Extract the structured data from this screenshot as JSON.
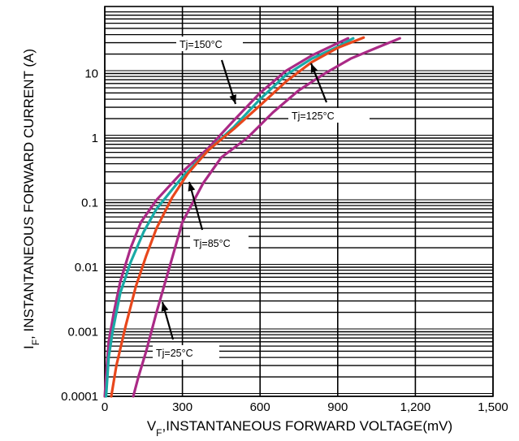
{
  "chart_data": {
    "type": "line",
    "xlabel": {
      "main": "V",
      "sub": "F",
      "rest": ",INSTANTANEOUS FORWARD VOLTAGE(mV)"
    },
    "ylabel": {
      "main": "I",
      "sub": "F",
      "rest": ", INSTANTANEOUS FORWARD CURRENT (A)"
    },
    "x_scale": "linear",
    "y_scale": "log",
    "xlim": [
      0,
      1500
    ],
    "ylim": [
      0.0001,
      50
    ],
    "x_ticks": [
      {
        "value": 0,
        "label": "0"
      },
      {
        "value": 300,
        "label": "300"
      },
      {
        "value": 600,
        "label": "600"
      },
      {
        "value": 900,
        "label": "900"
      },
      {
        "value": 1200,
        "label": "1,200"
      },
      {
        "value": 1500,
        "label": "1,500"
      }
    ],
    "y_ticks": [
      {
        "value": 0.0001,
        "label": "0.0001"
      },
      {
        "value": 0.001,
        "label": "0.001"
      },
      {
        "value": 0.01,
        "label": "0.01"
      },
      {
        "value": 0.1,
        "label": "0.1"
      },
      {
        "value": 1,
        "label": "1"
      },
      {
        "value": 10,
        "label": "10"
      }
    ],
    "grid": true,
    "series": [
      {
        "name": "Tj=150°C",
        "color": "#aa2a86",
        "x": [
          0,
          5,
          15,
          35,
          60,
          100,
          140,
          200,
          300,
          400,
          500,
          600,
          700,
          800,
          880,
          940
        ],
        "y": [
          0.0001,
          0.0002,
          0.0007,
          0.002,
          0.006,
          0.02,
          0.05,
          0.11,
          0.3,
          0.7,
          1.9,
          5,
          11,
          19,
          27,
          35
        ]
      },
      {
        "name": "Tj=125°C",
        "color": "#1aaaa6",
        "x": [
          5,
          15,
          30,
          60,
          100,
          150,
          200,
          300,
          400,
          500,
          600,
          700,
          800,
          900,
          960
        ],
        "y": [
          0.0001,
          0.0004,
          0.001,
          0.004,
          0.012,
          0.035,
          0.08,
          0.25,
          0.65,
          1.5,
          4,
          9.5,
          17,
          26,
          35
        ]
      },
      {
        "name": "Tj=85°C",
        "color": "#e8471c",
        "x": [
          25,
          45,
          80,
          120,
          160,
          200,
          260,
          320,
          400,
          500,
          600,
          700,
          800,
          900,
          1000
        ],
        "y": [
          0.0001,
          0.0003,
          0.0012,
          0.005,
          0.015,
          0.04,
          0.12,
          0.28,
          0.65,
          1.4,
          3.2,
          7.5,
          15,
          25,
          36
        ]
      },
      {
        "name": "Tj=25°C",
        "color": "#aa2a86",
        "x": [
          110,
          130,
          160,
          200,
          250,
          300,
          380,
          450,
          550,
          650,
          750,
          850,
          950,
          1050,
          1140
        ],
        "y": [
          0.0001,
          0.0002,
          0.0005,
          0.002,
          0.01,
          0.05,
          0.2,
          0.5,
          1.0,
          2.5,
          5.5,
          10,
          17,
          25,
          35
        ]
      }
    ],
    "annotations": [
      {
        "label": "Tj=150°C",
        "series": 0,
        "color": "#aa2a86"
      },
      {
        "label": "Tj=125°C",
        "series": 1,
        "color": "#1aaaa6"
      },
      {
        "label": "Tj=85°C",
        "series": 2,
        "color": "#e8471c"
      },
      {
        "label": "Tj=25°C",
        "series": 3,
        "color": "#aa2a86"
      }
    ]
  }
}
